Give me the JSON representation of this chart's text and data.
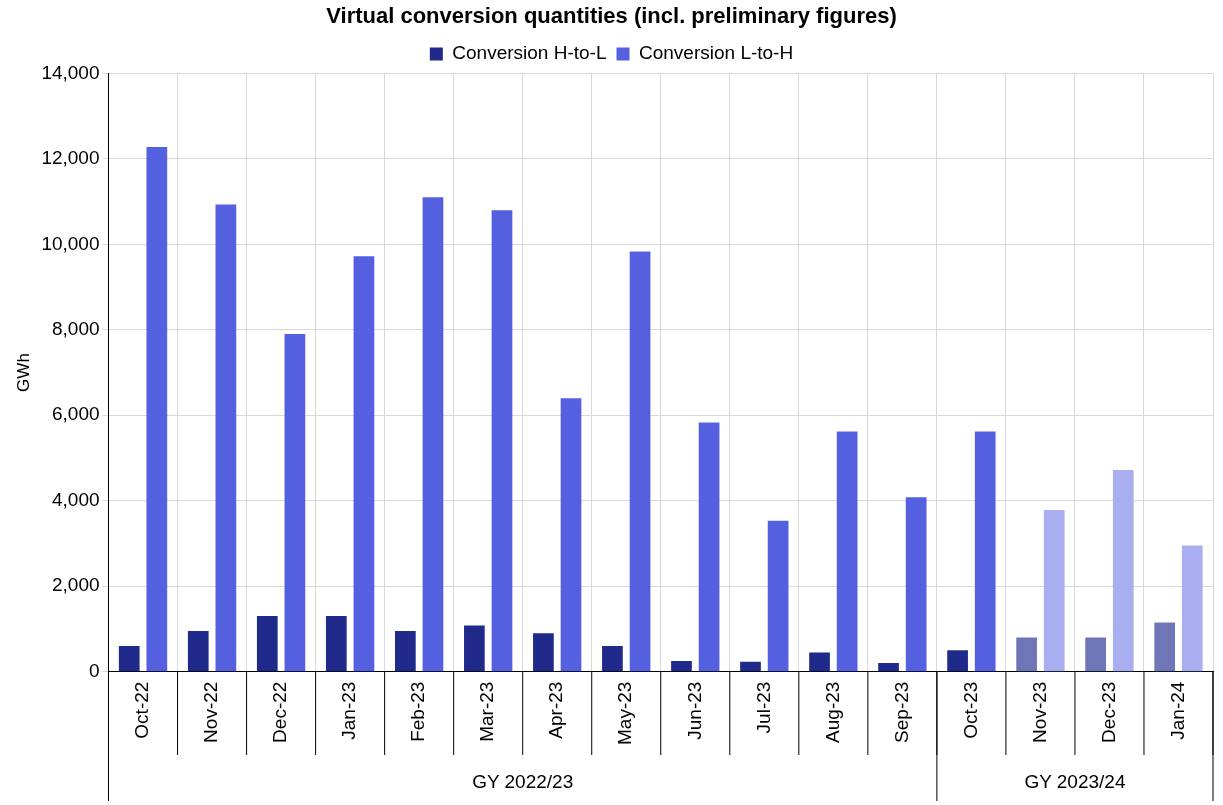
{
  "chart_data": {
    "type": "bar",
    "title": "Virtual conversion quantities (incl. preliminary figures)",
    "ylabel": "GWh",
    "categories": [
      "Oct-22",
      "Nov-22",
      "Dec-22",
      "Jan-23",
      "Feb-23",
      "Mar-23",
      "Apr-23",
      "May-23",
      "Jun-23",
      "Jul-23",
      "Aug-23",
      "Sep-23",
      "Oct-23",
      "Nov-23",
      "Dec-23",
      "Jan-24"
    ],
    "series": [
      {
        "name": "Conversion H-to-L",
        "color": "#1f2a8a",
        "colors": [
          "#1f2a8a",
          "#1f2a8a",
          "#1f2a8a",
          "#1f2a8a",
          "#1f2a8a",
          "#1f2a8a",
          "#1f2a8a",
          "#1f2a8a",
          "#1f2a8a",
          "#1f2a8a",
          "#1f2a8a",
          "#1f2a8a",
          "#1f2a8a",
          "#6f76b8",
          "#6f76b8",
          "#6f76b8"
        ],
        "values": [
          600,
          950,
          1300,
          1300,
          950,
          1080,
          900,
          600,
          250,
          230,
          450,
          200,
          500,
          800,
          800,
          1150
        ]
      },
      {
        "name": "Conversion L-to-H",
        "color": "#5560e0",
        "colors": [
          "#5560e0",
          "#5560e0",
          "#5560e0",
          "#5560e0",
          "#5560e0",
          "#5560e0",
          "#5560e0",
          "#5560e0",
          "#5560e0",
          "#5560e0",
          "#5560e0",
          "#5560e0",
          "#5560e0",
          "#a9aef0",
          "#a9aef0",
          "#a9aef0"
        ],
        "values": [
          12280,
          10930,
          7900,
          9720,
          11100,
          10800,
          6400,
          9830,
          5830,
          3530,
          5620,
          4080,
          5620,
          3780,
          4720,
          2950
        ]
      }
    ],
    "ylim": [
      0,
      14000
    ],
    "yticks": [
      {
        "value": 0,
        "label": "0"
      },
      {
        "value": 2000,
        "label": "2,000"
      },
      {
        "value": 4000,
        "label": "4,000"
      },
      {
        "value": 6000,
        "label": "6,000"
      },
      {
        "value": 8000,
        "label": "8,000"
      },
      {
        "value": 10000,
        "label": "10,000"
      },
      {
        "value": 12000,
        "label": "12,000"
      },
      {
        "value": 14000,
        "label": "14,000"
      }
    ],
    "grid": true,
    "legend": "top",
    "annotations": [
      "GY 2022/23",
      "GY 2023/24"
    ]
  }
}
